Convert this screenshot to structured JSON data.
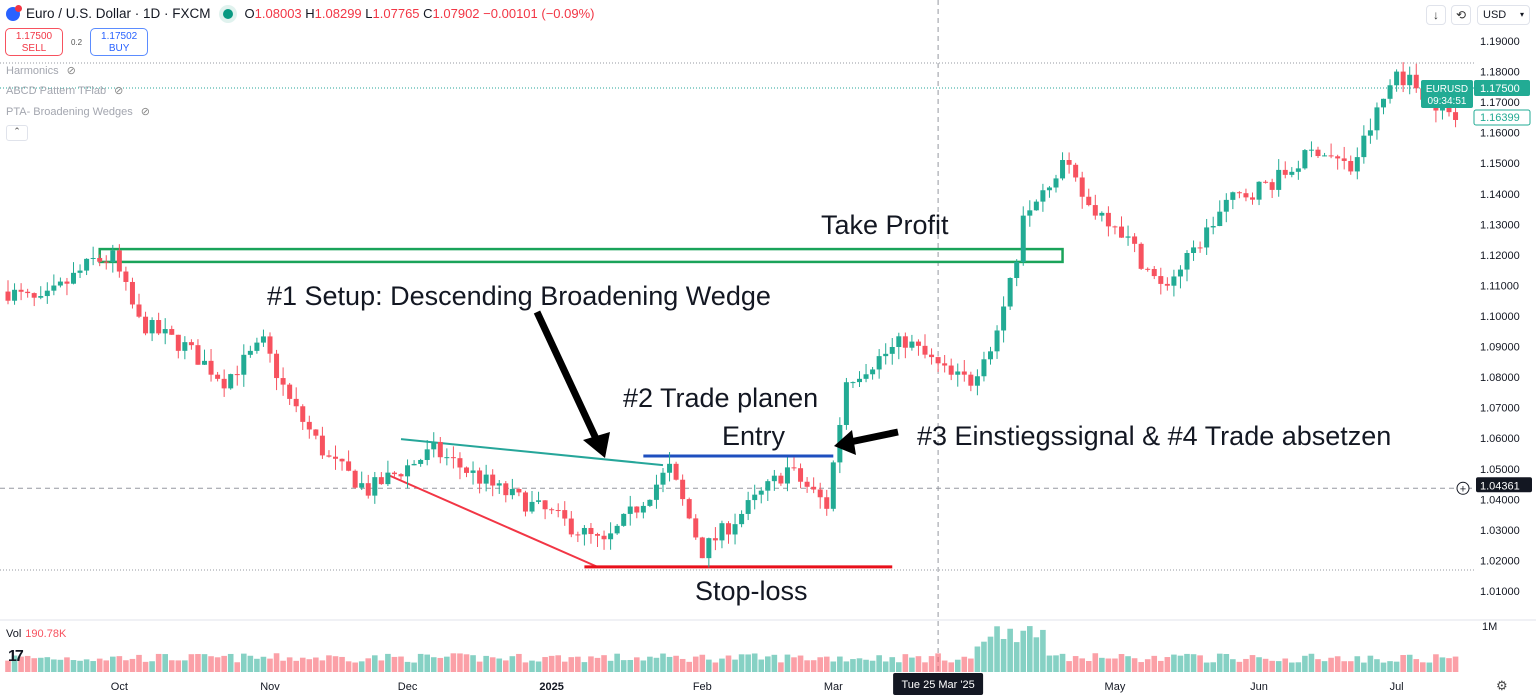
{
  "header": {
    "symbol": "Euro / U.S. Dollar · 1D · FXCM",
    "o_label": "O",
    "o": "1.08003",
    "h_label": "H",
    "h": "1.08299",
    "l_label": "L",
    "l": "1.07765",
    "c_label": "C",
    "c": "1.07902",
    "change": "−0.00101 (−0.09%)"
  },
  "trade": {
    "sell_price": "1.17500",
    "sell_label": "SELL",
    "spread": "0.2",
    "buy_price": "1.17502",
    "buy_label": "BUY"
  },
  "indicators": [
    "Harmonics",
    "ABCD Pattern TFlab",
    "PTA- Broadening Wedges"
  ],
  "toolbar": {
    "currency": "USD"
  },
  "volume": {
    "label": "Vol",
    "value": "190.78K",
    "axis_label": "1M"
  },
  "annotations": {
    "take_profit": "Take Profit",
    "setup": "#1 Setup: Descending Broadening Wedge",
    "plan": "#2 Trade planen",
    "entry": "Entry",
    "signal": "#3 Einstiegssignal  & #4 Trade absetzen",
    "stop": "Stop-loss"
  },
  "colors": {
    "up": "#22ab94",
    "down": "#f7525f",
    "take_profit": "#1aa35a",
    "wedge_upper": "#26a69a",
    "wedge_lower": "#f23645",
    "entry": "#1e4fbf",
    "stop": "#e8101a"
  },
  "chart_data": {
    "type": "candlestick",
    "start_date": "2024-09-06",
    "end_date": "2025-07-14",
    "ylim": [
      1.005,
      1.195
    ],
    "y_ticks": [
      "1.19000",
      "1.18000",
      "1.17000",
      "1.16000",
      "1.15000",
      "1.14000",
      "1.13000",
      "1.12000",
      "1.11000",
      "1.10000",
      "1.09000",
      "1.08000",
      "1.07000",
      "1.06000",
      "1.05000",
      "1.04000",
      "1.03000",
      "1.02000",
      "1.01000"
    ],
    "x_ticks": [
      {
        "date": "2024-10-01",
        "label": "Oct"
      },
      {
        "date": "2024-11-01",
        "label": "Nov"
      },
      {
        "date": "2024-12-02",
        "label": "Dec"
      },
      {
        "date": "2025-01-01",
        "label": "2025"
      },
      {
        "date": "2025-02-03",
        "label": "Feb"
      },
      {
        "date": "2025-03-03",
        "label": "Mar"
      },
      {
        "date": "2025-05-01",
        "label": "May"
      },
      {
        "date": "2025-06-02",
        "label": "Jun"
      },
      {
        "date": "2025-07-01",
        "label": "Jul"
      }
    ],
    "close_path": [
      [
        "2024-09-06",
        1.108
      ],
      [
        "2024-09-13",
        1.104
      ],
      [
        "2024-09-25",
        1.118
      ],
      [
        "2024-09-30",
        1.119
      ],
      [
        "2024-10-04",
        1.098
      ],
      [
        "2024-10-15",
        1.09
      ],
      [
        "2024-10-23",
        1.079
      ],
      [
        "2024-10-31",
        1.091
      ],
      [
        "2024-11-06",
        1.072
      ],
      [
        "2024-11-14",
        1.053
      ],
      [
        "2024-11-22",
        1.043
      ],
      [
        "2024-12-06",
        1.056
      ],
      [
        "2024-12-20",
        1.043
      ],
      [
        "2025-01-01",
        1.035
      ],
      [
        "2025-01-13",
        1.025
      ],
      [
        "2025-01-27",
        1.05
      ],
      [
        "2025-02-03",
        1.023
      ],
      [
        "2025-02-20",
        1.05
      ],
      [
        "2025-02-28",
        1.038
      ],
      [
        "2025-03-05",
        1.079
      ],
      [
        "2025-03-18",
        1.092
      ],
      [
        "2025-03-27",
        1.08
      ],
      [
        "2025-04-01",
        1.079
      ],
      [
        "2025-04-07",
        1.095
      ],
      [
        "2025-04-10",
        1.12
      ],
      [
        "2025-04-11",
        1.135
      ],
      [
        "2025-04-21",
        1.15
      ],
      [
        "2025-04-25",
        1.136
      ],
      [
        "2025-05-01",
        1.131
      ],
      [
        "2025-05-12",
        1.109
      ],
      [
        "2025-05-16",
        1.118
      ],
      [
        "2025-05-26",
        1.137
      ],
      [
        "2025-06-05",
        1.145
      ],
      [
        "2025-06-13",
        1.155
      ],
      [
        "2025-06-20",
        1.148
      ],
      [
        "2025-07-01",
        1.18
      ],
      [
        "2025-07-08",
        1.172
      ],
      [
        "2025-07-14",
        1.164
      ]
    ],
    "last_price": {
      "symbol": "EURUSD",
      "price": "1.17500",
      "countdown": "09:34:51"
    },
    "prev_close_label": "1.16399",
    "crosshair": {
      "date_label": "Tue 25 Mar '25",
      "price_label": "1.04361"
    },
    "take_profit_box": {
      "from": "2024-09-26",
      "to": "2025-04-21",
      "top": 1.1219,
      "bottom": 1.1177
    },
    "wedge_upper": [
      [
        "2024-11-29",
        1.0597
      ],
      [
        "2025-01-24",
        1.0512
      ]
    ],
    "wedge_lower": [
      [
        "2024-11-27",
        1.048
      ],
      [
        "2025-01-10",
        1.0179
      ]
    ],
    "entry_line": {
      "from": "2025-01-21",
      "to": "2025-03-03",
      "price": 1.0542
    },
    "stop_line": {
      "from": "2025-01-08",
      "to": "2025-03-14",
      "price": 1.0179
    }
  }
}
